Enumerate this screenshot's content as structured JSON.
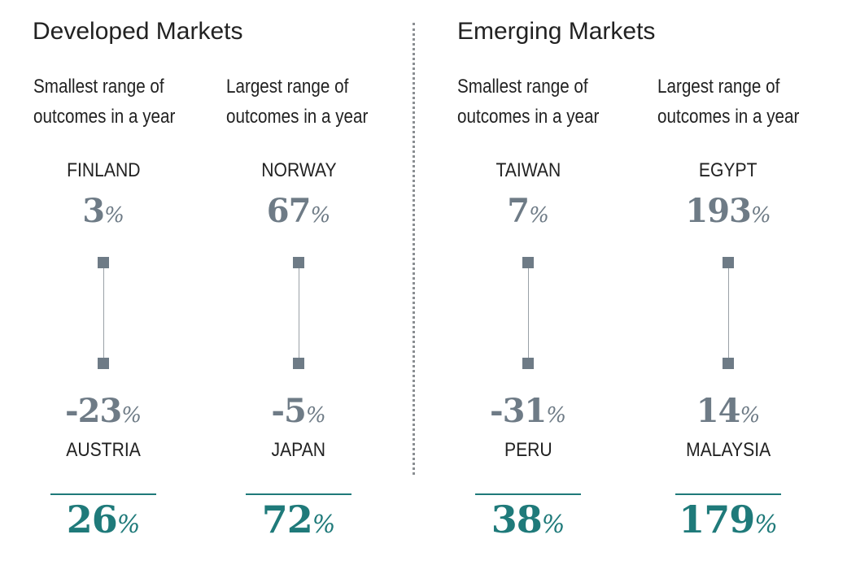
{
  "chart_data": {
    "type": "range",
    "unit": "%",
    "groups": [
      {
        "title": "Developed Markets",
        "panels": [
          {
            "label_line1": "Smallest range of",
            "label_line2": "outcomes in a year",
            "high_country": "FINLAND",
            "high_value": 3,
            "high_display": "3",
            "low_country": "AUSTRIA",
            "low_value": -23,
            "low_display": "-23",
            "range_value": 26,
            "range_display": "26"
          },
          {
            "label_line1": "Largest range of",
            "label_line2": "outcomes in a year",
            "high_country": "NORWAY",
            "high_value": 67,
            "high_display": "67",
            "low_country": "JAPAN",
            "low_value": -5,
            "low_display": "-5",
            "range_value": 72,
            "range_display": "72"
          }
        ]
      },
      {
        "title": "Emerging Markets",
        "panels": [
          {
            "label_line1": "Smallest range of",
            "label_line2": "outcomes in a year",
            "high_country": "TAIWAN",
            "high_value": 7,
            "high_display": "7",
            "low_country": "PERU",
            "low_value": -31,
            "low_display": "-31",
            "range_value": 38,
            "range_display": "38"
          },
          {
            "label_line1": "Largest range of",
            "label_line2": "outcomes in a year",
            "high_country": "EGYPT",
            "high_value": 193,
            "high_display": "193",
            "low_country": "MALAYSIA",
            "low_value": 14,
            "low_display": "14",
            "range_value": 179,
            "range_display": "179"
          }
        ]
      }
    ]
  },
  "colors": {
    "value_gray": "#6e7b86",
    "range_teal": "#1f7a7a",
    "text": "#222222"
  }
}
